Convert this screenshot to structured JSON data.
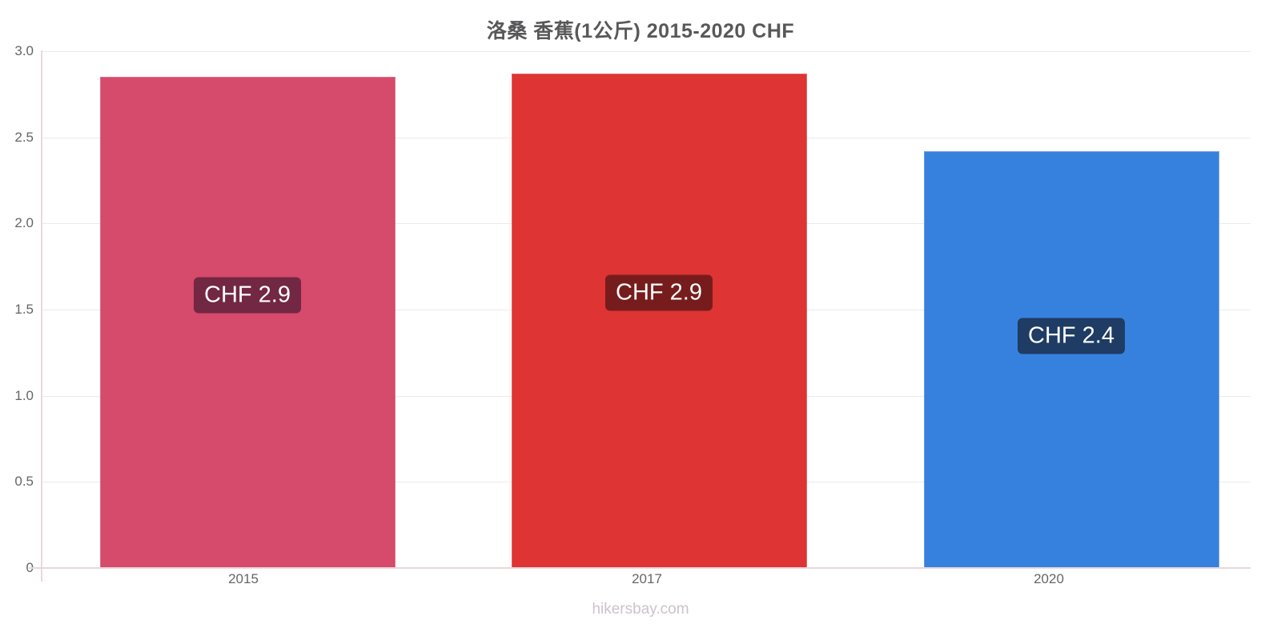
{
  "chart_data": {
    "type": "bar",
    "title": "洛桑 香蕉(1公斤) 2015-2020 CHF",
    "categories": [
      "2015",
      "2017",
      "2020"
    ],
    "values": [
      2.85,
      2.87,
      2.42
    ],
    "bar_value_labels": [
      "CHF 2.9",
      "CHF 2.9",
      "CHF 2.4"
    ],
    "bar_colors": [
      "#d64a6b",
      "#de3434",
      "#3781de"
    ],
    "bar_border_colors": [
      "#e2708a",
      "#e66060",
      "#6fa0e6"
    ],
    "bar_label_backgrounds": [
      "#722743",
      "#771c1c",
      "#1e3c64"
    ],
    "xlabel": "",
    "ylabel": "",
    "ylim": [
      0,
      3
    ],
    "ytick_labels": [
      "3.0",
      "2.5",
      "2.0",
      "1.5",
      "1.0",
      "0.5",
      "0"
    ],
    "ytick_values": [
      3.0,
      2.5,
      2.0,
      1.5,
      1.0,
      0.5,
      0
    ],
    "grid": "horizontal",
    "legend": "none",
    "colors": {
      "axis": "#e9d7db",
      "grid": "#ebebeb",
      "tick_label": "#666666",
      "title": "#58585a"
    }
  },
  "footer": {
    "watermark": "hikersbay.com"
  }
}
